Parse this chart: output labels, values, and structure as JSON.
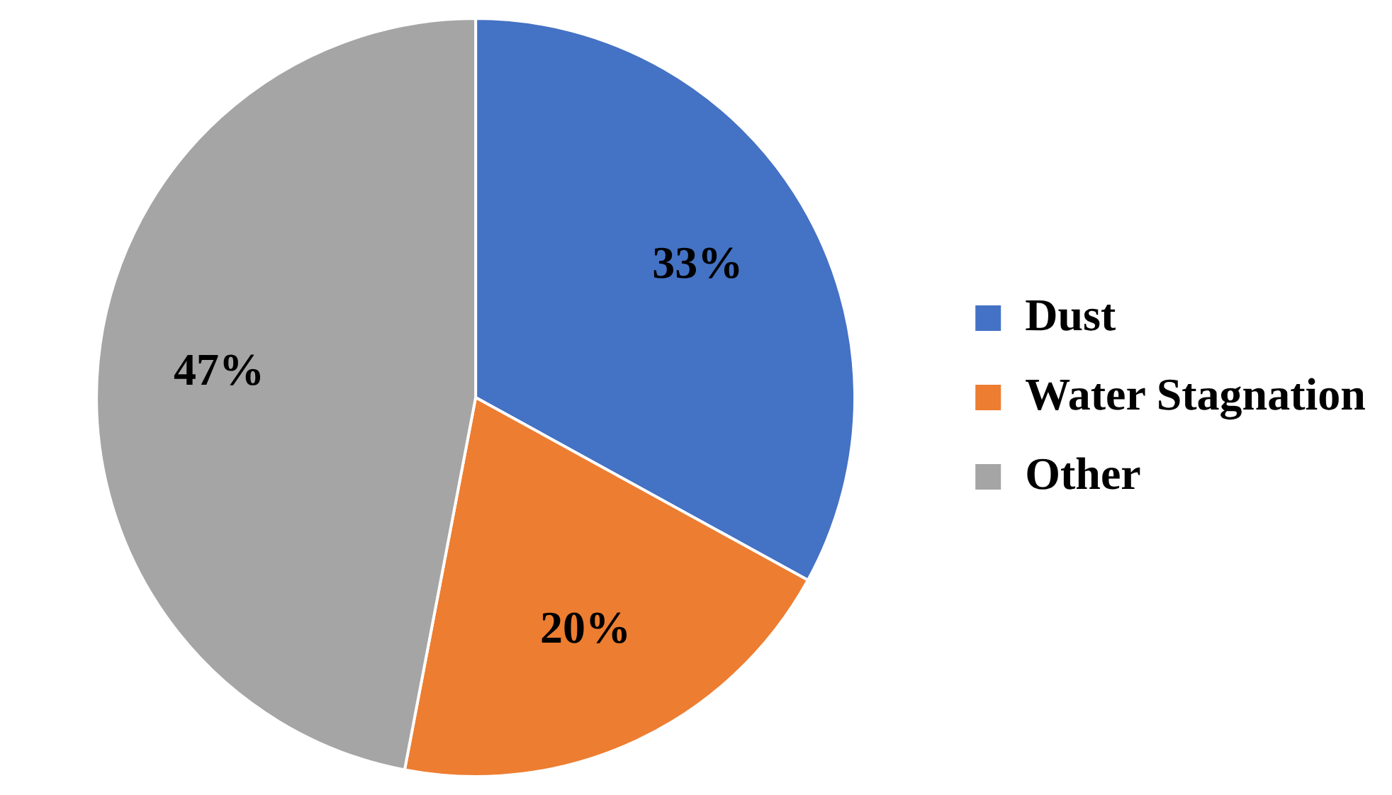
{
  "chart_data": {
    "type": "pie",
    "categories": [
      "Dust",
      "Water Stagnation",
      "Other"
    ],
    "values": [
      33,
      20,
      47
    ],
    "colors": [
      "#4472c4",
      "#ed7d31",
      "#a5a5a5"
    ],
    "value_labels": [
      "33%",
      "20%",
      "47%"
    ],
    "legend": "right"
  }
}
